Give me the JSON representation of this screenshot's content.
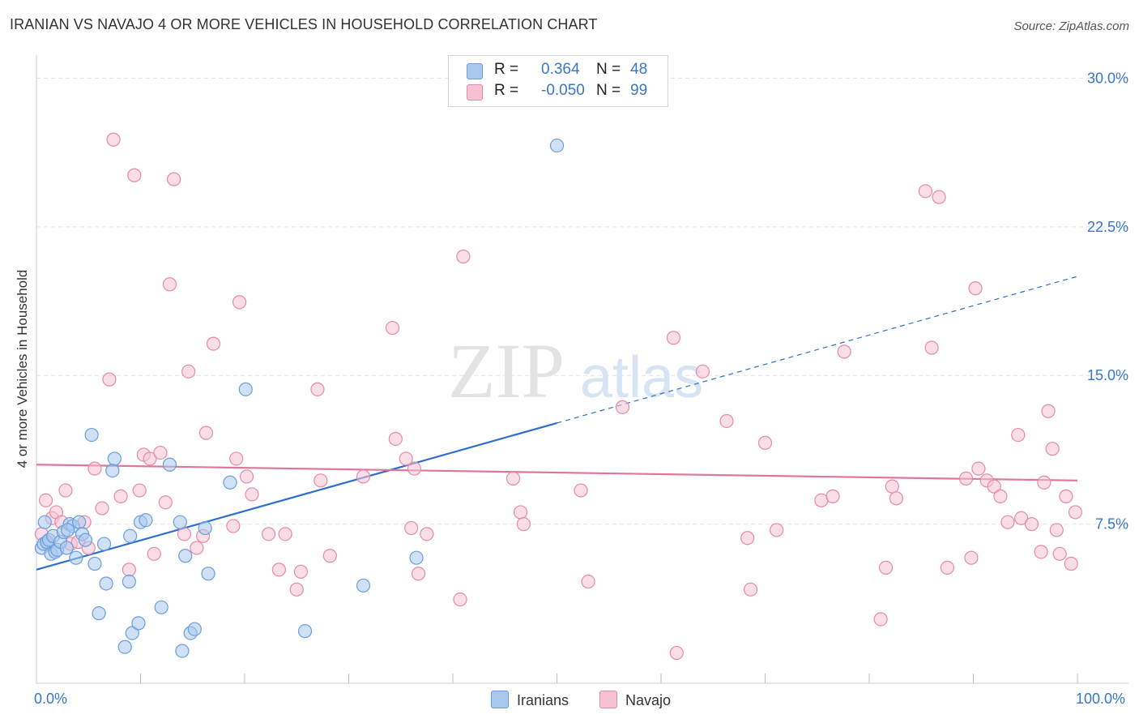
{
  "title": "IRANIAN VS NAVAJO 4 OR MORE VEHICLES IN HOUSEHOLD CORRELATION CHART",
  "source": "Source: ZipAtlas.com",
  "watermark": {
    "zip": "ZIP",
    "atlas": "atlas"
  },
  "colors": {
    "blue_fill": "#aac8ee",
    "blue_stroke": "#6a9edc",
    "blue_line": "#2e6fce",
    "pink_fill": "#f6c2d3",
    "pink_stroke": "#e68aa9",
    "pink_line": "#e2759a",
    "axis_label": "#3a76c8",
    "grid": "#e4e4e4"
  },
  "legend": {
    "rows": [
      {
        "r_label": "R =",
        "r_value": "0.364",
        "n_label": "N =",
        "n_value": "48",
        "series": "Iranians"
      },
      {
        "r_label": "R =",
        "r_value": "-0.050",
        "n_label": "N =",
        "n_value": "99",
        "series": "Navajo"
      }
    ]
  },
  "bottom_legend": [
    "Iranians",
    "Navajo"
  ],
  "chart_data": {
    "type": "scatter",
    "title": "IRANIAN VS NAVAJO 4 OR MORE VEHICLES IN HOUSEHOLD CORRELATION CHART",
    "xlabel": "",
    "ylabel": "4 or more Vehicles in Household",
    "xlim": [
      0,
      100
    ],
    "ylim": [
      0,
      31
    ],
    "x_tick_labels": [
      "0.0%",
      "100.0%"
    ],
    "y_ticks": [
      7.5,
      15.0,
      22.5,
      30.0
    ],
    "y_tick_labels": [
      "7.5%",
      "15.0%",
      "22.5%",
      "30.0%"
    ],
    "grid": true,
    "legend_position": "top-center",
    "series": [
      {
        "name": "Iranians",
        "r": 0.364,
        "n": 48,
        "trend": {
          "x0": 0,
          "y0": 5.2,
          "x1": 50,
          "y1": 12.6,
          "dashed_to_x": 100,
          "dashed_to_y": 20.0
        },
        "points": [
          [
            0.5,
            6.3
          ],
          [
            0.7,
            6.5
          ],
          [
            0.8,
            7.6
          ],
          [
            1.0,
            6.6
          ],
          [
            1.2,
            6.7
          ],
          [
            1.4,
            6.0
          ],
          [
            1.6,
            6.9
          ],
          [
            1.8,
            6.1
          ],
          [
            2.0,
            6.2
          ],
          [
            2.3,
            6.6
          ],
          [
            2.6,
            7.1
          ],
          [
            2.9,
            6.3
          ],
          [
            3.2,
            7.5
          ],
          [
            3.5,
            7.4
          ],
          [
            3.8,
            5.8
          ],
          [
            4.1,
            7.6
          ],
          [
            4.4,
            7.0
          ],
          [
            4.7,
            6.7
          ],
          [
            5.3,
            12.0
          ],
          [
            5.6,
            5.5
          ],
          [
            6.0,
            3.0
          ],
          [
            6.5,
            6.5
          ],
          [
            6.7,
            4.5
          ],
          [
            7.3,
            10.2
          ],
          [
            7.5,
            10.8
          ],
          [
            8.5,
            1.3
          ],
          [
            8.9,
            4.6
          ],
          [
            9.2,
            2.0
          ],
          [
            9.8,
            2.5
          ],
          [
            10.0,
            7.6
          ],
          [
            10.5,
            7.7
          ],
          [
            12.0,
            3.3
          ],
          [
            12.8,
            10.5
          ],
          [
            13.8,
            7.6
          ],
          [
            14.0,
            1.1
          ],
          [
            14.3,
            5.9
          ],
          [
            14.8,
            2.0
          ],
          [
            15.2,
            2.2
          ],
          [
            16.2,
            7.3
          ],
          [
            16.5,
            5.0
          ],
          [
            18.6,
            9.6
          ],
          [
            20.1,
            14.3
          ],
          [
            25.8,
            2.1
          ],
          [
            31.4,
            4.4
          ],
          [
            36.5,
            5.8
          ],
          [
            50.0,
            26.6
          ],
          [
            9.0,
            6.9
          ],
          [
            3.0,
            7.2
          ]
        ]
      },
      {
        "name": "Navajo",
        "r": -0.05,
        "n": 99,
        "trend": {
          "x0": 0,
          "y0": 10.5,
          "x1": 100,
          "y1": 9.7
        },
        "points": [
          [
            0.5,
            7.0
          ],
          [
            0.9,
            8.7
          ],
          [
            1.1,
            6.5
          ],
          [
            1.5,
            7.8
          ],
          [
            1.9,
            8.1
          ],
          [
            2.4,
            7.6
          ],
          [
            2.8,
            9.2
          ],
          [
            3.3,
            6.5
          ],
          [
            4.0,
            6.6
          ],
          [
            4.6,
            7.6
          ],
          [
            5.0,
            6.3
          ],
          [
            5.6,
            10.3
          ],
          [
            6.3,
            8.3
          ],
          [
            7.0,
            14.8
          ],
          [
            7.4,
            26.9
          ],
          [
            8.1,
            8.9
          ],
          [
            8.9,
            5.2
          ],
          [
            9.4,
            25.1
          ],
          [
            9.9,
            9.2
          ],
          [
            10.3,
            11.0
          ],
          [
            10.9,
            10.8
          ],
          [
            11.3,
            6.0
          ],
          [
            11.9,
            11.1
          ],
          [
            12.4,
            8.6
          ],
          [
            12.8,
            19.6
          ],
          [
            13.2,
            24.9
          ],
          [
            14.2,
            7.0
          ],
          [
            14.6,
            15.2
          ],
          [
            15.4,
            6.3
          ],
          [
            16.0,
            6.9
          ],
          [
            16.3,
            12.1
          ],
          [
            17.0,
            16.6
          ],
          [
            18.9,
            7.4
          ],
          [
            19.2,
            10.8
          ],
          [
            19.5,
            18.7
          ],
          [
            20.2,
            9.9
          ],
          [
            20.7,
            9.0
          ],
          [
            22.3,
            7.0
          ],
          [
            23.3,
            5.2
          ],
          [
            23.9,
            7.0
          ],
          [
            25.0,
            4.2
          ],
          [
            25.4,
            5.1
          ],
          [
            27.0,
            14.3
          ],
          [
            27.3,
            9.7
          ],
          [
            28.2,
            5.9
          ],
          [
            31.4,
            9.9
          ],
          [
            34.2,
            17.4
          ],
          [
            34.5,
            11.8
          ],
          [
            35.5,
            10.8
          ],
          [
            36.0,
            7.3
          ],
          [
            36.3,
            10.3
          ],
          [
            36.7,
            5.0
          ],
          [
            37.5,
            7.0
          ],
          [
            40.7,
            3.7
          ],
          [
            41.0,
            21.0
          ],
          [
            45.8,
            9.8
          ],
          [
            46.5,
            8.1
          ],
          [
            46.8,
            7.5
          ],
          [
            52.3,
            9.2
          ],
          [
            53.0,
            4.6
          ],
          [
            56.3,
            13.4
          ],
          [
            61.2,
            16.9
          ],
          [
            61.5,
            1.0
          ],
          [
            64.0,
            15.2
          ],
          [
            66.3,
            12.7
          ],
          [
            68.3,
            6.8
          ],
          [
            68.6,
            4.2
          ],
          [
            70.0,
            11.6
          ],
          [
            71.1,
            7.2
          ],
          [
            75.4,
            8.7
          ],
          [
            76.5,
            8.9
          ],
          [
            77.6,
            16.2
          ],
          [
            81.1,
            2.7
          ],
          [
            81.6,
            5.3
          ],
          [
            82.2,
            9.4
          ],
          [
            82.6,
            8.8
          ],
          [
            85.4,
            24.3
          ],
          [
            86.0,
            16.4
          ],
          [
            86.7,
            24.0
          ],
          [
            87.5,
            5.3
          ],
          [
            89.3,
            9.8
          ],
          [
            89.8,
            5.8
          ],
          [
            90.2,
            19.4
          ],
          [
            90.5,
            10.3
          ],
          [
            91.3,
            9.7
          ],
          [
            92.0,
            9.4
          ],
          [
            92.6,
            8.9
          ],
          [
            93.3,
            7.6
          ],
          [
            94.3,
            12.0
          ],
          [
            94.6,
            7.8
          ],
          [
            95.6,
            7.5
          ],
          [
            96.5,
            6.1
          ],
          [
            96.8,
            9.6
          ],
          [
            97.2,
            13.2
          ],
          [
            97.6,
            11.3
          ],
          [
            98.0,
            7.2
          ],
          [
            98.3,
            6.0
          ],
          [
            98.9,
            8.9
          ],
          [
            99.4,
            5.5
          ],
          [
            99.8,
            8.1
          ]
        ]
      }
    ]
  }
}
